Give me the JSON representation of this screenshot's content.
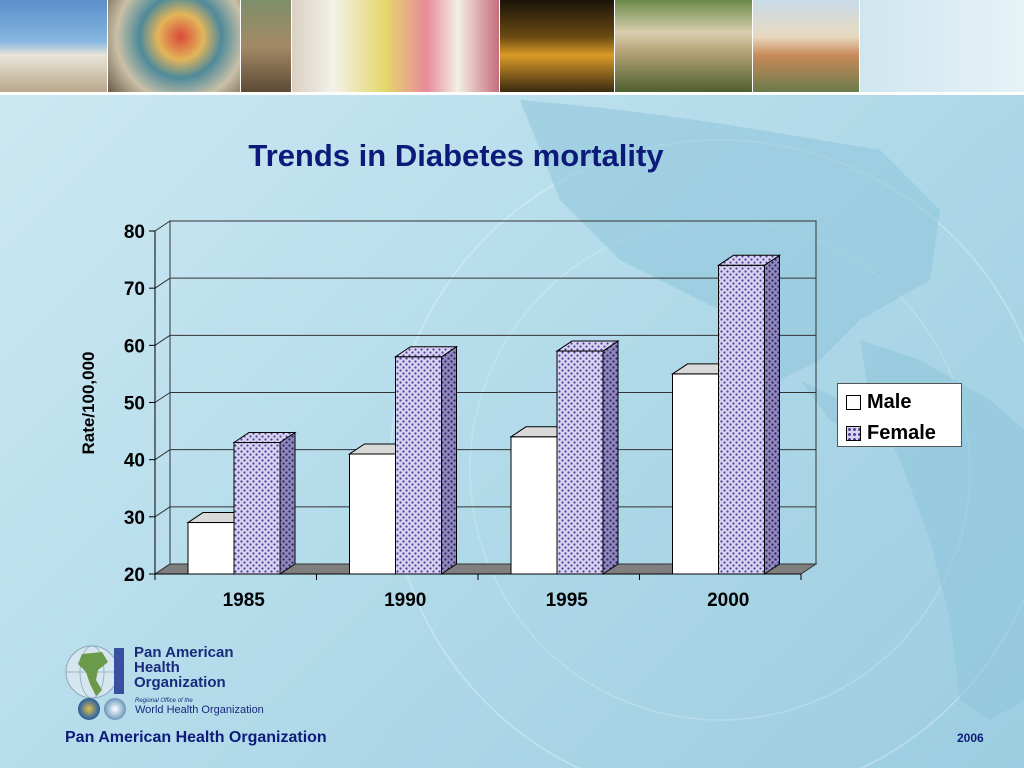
{
  "slide": {
    "title": "Trends in Diabetes mortality",
    "footer_org": "Pan American Health Organization",
    "footer_year": "2006"
  },
  "logo": {
    "line1": "Pan American",
    "line2": "Health",
    "line3": "Organization",
    "regional": "Regional Office of the",
    "who": "World Health Organization"
  },
  "legend": {
    "male": "Male",
    "female": "Female"
  },
  "colors": {
    "title": "#0e1a7a",
    "male_fill": "#ffffff",
    "female_fill": "#d8d4f0",
    "female_dots": "#4a3f9a",
    "floor": "#7f7f7f"
  },
  "chart_data": {
    "type": "bar",
    "title": "Trends in Diabetes mortality",
    "xlabel": "",
    "ylabel": "Rate/100,000",
    "categories": [
      "1985",
      "1990",
      "1995",
      "2000"
    ],
    "series": [
      {
        "name": "Male",
        "values": [
          29,
          41,
          44,
          55
        ]
      },
      {
        "name": "Female",
        "values": [
          43,
          58,
          59,
          74
        ]
      }
    ],
    "ylim": [
      20,
      80
    ],
    "yticks": [
      "20",
      "30",
      "40",
      "50",
      "60",
      "70",
      "80"
    ],
    "grid": true,
    "legend": "right",
    "style": "3d"
  }
}
